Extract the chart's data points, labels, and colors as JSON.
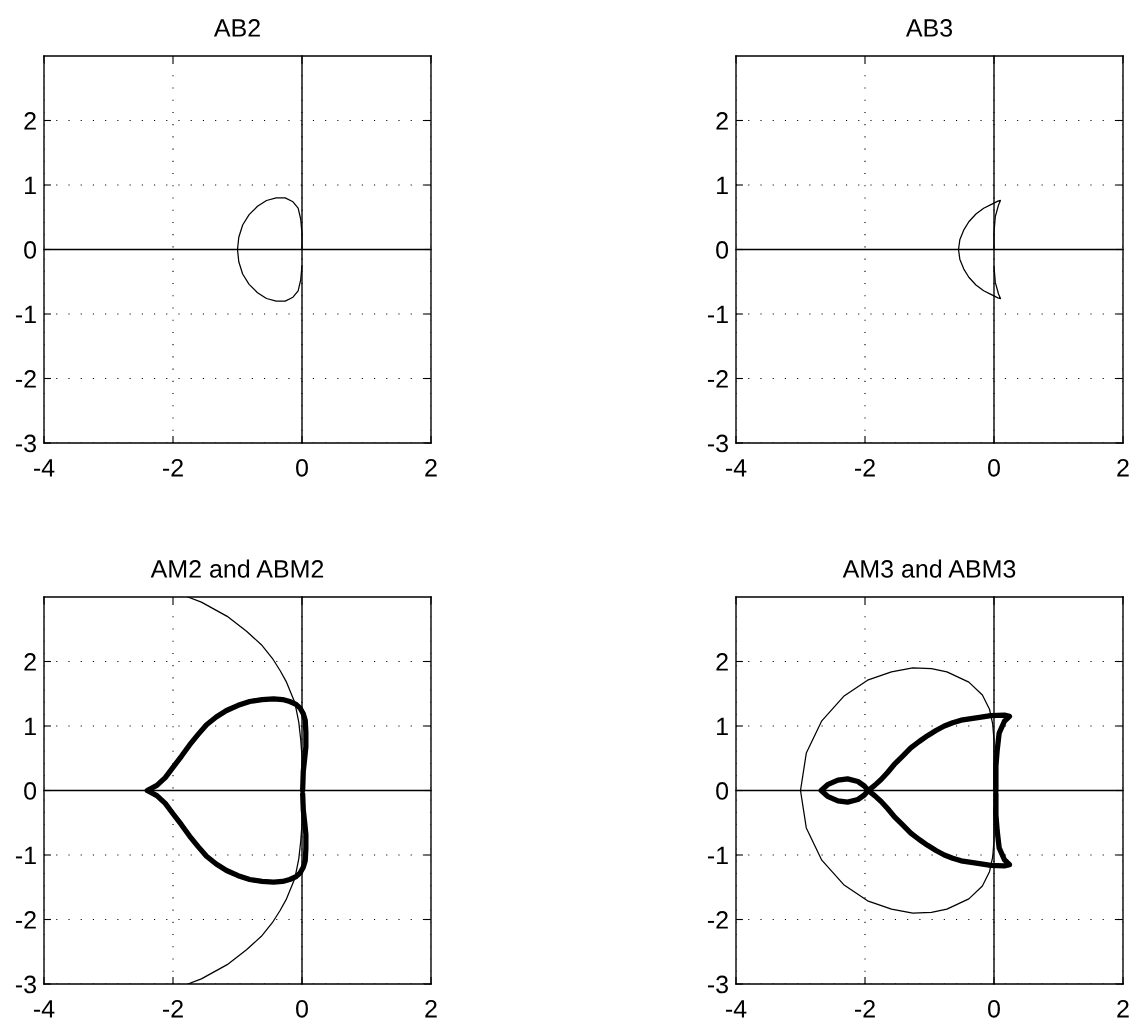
{
  "chart_data": [
    {
      "type": "line",
      "title": "AB2",
      "xlim": [
        -4,
        2
      ],
      "ylim": [
        -3,
        3
      ],
      "xticks": [
        -4,
        -2,
        0,
        2
      ],
      "yticks": [
        -3,
        -2,
        -1,
        0,
        1,
        2
      ],
      "grid": true,
      "series": [
        {
          "color": "#000000",
          "x": [
            0,
            0,
            -0.02,
            -0.06,
            -0.14,
            -0.26,
            -0.4,
            -0.55,
            -0.69,
            -0.82,
            -0.92,
            -0.98,
            -1,
            -0.98,
            -0.92,
            -0.82,
            -0.69,
            -0.55,
            -0.4,
            -0.26,
            -0.14,
            -0.06,
            -0.02,
            0
          ],
          "values": [
            0,
            0.25,
            0.47,
            0.64,
            0.74,
            0.8,
            0.8,
            0.76,
            0.67,
            0.54,
            0.38,
            0.19,
            0,
            -0.19,
            -0.38,
            -0.54,
            -0.67,
            -0.76,
            -0.8,
            -0.8,
            -0.74,
            -0.64,
            -0.47,
            -0.25
          ]
        }
      ]
    },
    {
      "type": "line",
      "title": "AB3",
      "xlim": [
        -4,
        2
      ],
      "ylim": [
        -3,
        3
      ],
      "xticks": [
        -4,
        -2,
        0,
        2
      ],
      "yticks": [
        -3,
        -2,
        -1,
        0,
        1,
        2
      ],
      "grid": true,
      "series": [
        {
          "color": "#000000",
          "x": [
            0,
            0,
            0.02,
            0.07,
            0.1,
            0.06,
            -0.04,
            -0.16,
            -0.28,
            -0.39,
            -0.47,
            -0.53,
            -0.55,
            -0.53,
            -0.47,
            -0.39,
            -0.28,
            -0.16,
            -0.04,
            0.06,
            0.1,
            0.07,
            0.02,
            0
          ],
          "values": [
            0,
            0.26,
            0.51,
            0.69,
            0.76,
            0.75,
            0.7,
            0.64,
            0.55,
            0.43,
            0.3,
            0.15,
            0,
            -0.15,
            -0.3,
            -0.43,
            -0.55,
            -0.64,
            -0.7,
            -0.75,
            -0.76,
            -0.69,
            -0.51,
            -0.26
          ]
        }
      ]
    },
    {
      "type": "line",
      "title": "AM2 and ABM2",
      "xlim": [
        -4,
        2
      ],
      "ylim": [
        -3,
        3
      ],
      "xticks": [
        -4,
        -2,
        0,
        2
      ],
      "yticks": [
        -3,
        -2,
        -1,
        0,
        1,
        2
      ],
      "grid": true,
      "series": [
        {
          "color": "#000000",
          "x": [
            -1.77,
            -1.56,
            -1.16,
            -0.86,
            -0.63,
            -0.46,
            -0.34,
            -0.24,
            -0.11,
            -0.05,
            -0.02,
            0,
            0,
            0,
            0,
            0,
            -0.02,
            -0.05,
            -0.11,
            -0.24,
            -0.34,
            -0.46,
            -0.63,
            -0.86,
            -1.16,
            -1.56,
            -1.77
          ],
          "values": [
            3,
            2.92,
            2.7,
            2.47,
            2.26,
            2.05,
            1.86,
            1.68,
            1.36,
            1.06,
            0.79,
            0.52,
            0.26,
            0,
            -0.26,
            -0.52,
            -0.79,
            -1.06,
            -1.36,
            -1.68,
            -1.86,
            -2.05,
            -2.26,
            -2.47,
            -2.7,
            -2.92,
            -3
          ]
        },
        {
          "color": "#000000",
          "x": [
            0.01,
            0.02,
            0.04,
            0.06,
            0.06,
            0.05,
            0.02,
            -0.03,
            -0.1,
            -0.19,
            -0.3,
            -0.44,
            -0.62,
            -0.81,
            -0.99,
            -1.17,
            -1.33,
            -1.48,
            -1.61,
            -1.74,
            -1.87,
            -2.0,
            -2.12,
            -2.25,
            -2.4,
            -2.25,
            -2.12,
            -2.0,
            -1.87,
            -1.74,
            -1.61,
            -1.48,
            -1.33,
            -1.17,
            -0.99,
            -0.81,
            -0.62,
            -0.44,
            -0.3,
            -0.19,
            -0.1,
            -0.03,
            0.02,
            0.05,
            0.06,
            0.06,
            0.04,
            0.02,
            0.01
          ],
          "values": [
            0,
            0.3,
            0.48,
            0.68,
            0.9,
            1.09,
            1.19,
            1.28,
            1.34,
            1.38,
            1.41,
            1.42,
            1.41,
            1.38,
            1.32,
            1.24,
            1.14,
            1.02,
            0.87,
            0.71,
            0.53,
            0.36,
            0.2,
            0.08,
            0,
            -0.08,
            -0.2,
            -0.36,
            -0.53,
            -0.71,
            -0.87,
            -1.02,
            -1.14,
            -1.24,
            -1.32,
            -1.38,
            -1.41,
            -1.42,
            -1.41,
            -1.38,
            -1.34,
            -1.28,
            -1.19,
            -1.09,
            -0.9,
            -0.68,
            -0.48,
            -0.3,
            -0.05
          ]
        }
      ]
    },
    {
      "type": "line",
      "title": "AM3 and ABM3",
      "xlim": [
        -4,
        2
      ],
      "ylim": [
        -3,
        3
      ],
      "xticks": [
        -4,
        -2,
        0,
        2
      ],
      "yticks": [
        -3,
        -2,
        -1,
        0,
        1,
        2
      ],
      "grid": true,
      "series": [
        {
          "color": "#000000",
          "x": [
            0,
            0,
            0,
            0,
            -0.02,
            -0.07,
            -0.18,
            -0.39,
            -0.73,
            -0.97,
            -1.26,
            -1.59,
            -1.96,
            -2.33,
            -2.67,
            -2.91,
            -3,
            -2.91,
            -2.67,
            -2.33,
            -1.96,
            -1.59,
            -1.26,
            -0.97,
            -0.73,
            -0.39,
            -0.18,
            -0.07,
            -0.02,
            0,
            0,
            0
          ],
          "values": [
            0,
            0.26,
            0.52,
            0.78,
            1.03,
            1.26,
            1.48,
            1.68,
            1.84,
            1.89,
            1.9,
            1.84,
            1.71,
            1.46,
            1.08,
            0.58,
            0,
            -0.58,
            -1.08,
            -1.46,
            -1.71,
            -1.84,
            -1.9,
            -1.89,
            -1.84,
            -1.68,
            -1.48,
            -1.26,
            -1.03,
            -0.78,
            -0.52,
            -0.26
          ]
        },
        {
          "color": "#000000",
          "x": [
            0.03,
            0.03,
            0.05,
            0.08,
            0.16,
            0.24,
            0.16,
            -0.05,
            -0.25,
            -0.38,
            -0.51,
            -0.64,
            -0.77,
            -0.9,
            -1.03,
            -1.16,
            -1.29,
            -1.42,
            -1.55,
            -1.65,
            -1.75,
            -1.85,
            -1.95,
            -2.01,
            -2.11,
            -2.27,
            -2.42,
            -2.58,
            -2.68,
            -2.58,
            -2.42,
            -2.27,
            -2.11,
            -2.01,
            -1.95,
            -1.85,
            -1.75,
            -1.65,
            -1.55,
            -1.42,
            -1.29,
            -1.16,
            -1.03,
            -0.9,
            -0.77,
            -0.64,
            -0.51,
            -0.38,
            -0.25,
            -0.05,
            0.16,
            0.24,
            0.16,
            0.08,
            0.05,
            0.03,
            0.03
          ],
          "values": [
            0,
            0.38,
            0.63,
            0.89,
            1.07,
            1.15,
            1.17,
            1.16,
            1.13,
            1.11,
            1.09,
            1.05,
            1.0,
            0.93,
            0.85,
            0.76,
            0.66,
            0.53,
            0.4,
            0.28,
            0.17,
            0.08,
            0,
            0.07,
            0.14,
            0.18,
            0.16,
            0.09,
            0,
            -0.09,
            -0.16,
            -0.18,
            -0.14,
            -0.07,
            0,
            -0.08,
            -0.17,
            -0.28,
            -0.4,
            -0.53,
            -0.66,
            -0.76,
            -0.85,
            -0.93,
            -1.0,
            -1.05,
            -1.09,
            -1.11,
            -1.13,
            -1.16,
            -1.17,
            -1.15,
            -1.07,
            -0.89,
            -0.63,
            -0.38,
            -0.05
          ]
        }
      ]
    }
  ]
}
